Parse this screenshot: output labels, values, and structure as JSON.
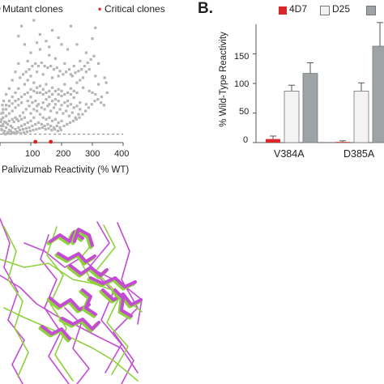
{
  "colors": {
    "mutant_points": "#b5b5b5",
    "critical_points": "#e02020",
    "series_4D7": "#d8262b",
    "series_D25": "#f3f3f3",
    "series_third": "#9ea3a6",
    "error_bar": "#555555",
    "axis": "#555555",
    "dashed_threshold": "#555555",
    "mol_green": "#8fd13d",
    "mol_magenta": "#c44bd4"
  },
  "panel_b_label": "B.",
  "chart_data": [
    {
      "type": "scatter",
      "legend_placement": "top",
      "legend": [
        {
          "label": "Mutant clones",
          "marker": "gray-square"
        },
        {
          "label": "Critical clones",
          "marker": "red-square"
        }
      ],
      "xlabel": "Palivizumab Reactivity (% WT)",
      "ylabel": "",
      "x_ticks": [
        "0",
        "100",
        "200",
        "300",
        "400"
      ],
      "xlim": [
        0,
        400
      ],
      "ylim": [
        0,
        150
      ],
      "grid": false,
      "threshold_line_y": 10,
      "series": [
        {
          "name": "Mutant clones",
          "points": [
            [
              70,
              140
            ],
            [
              110,
              147
            ],
            [
              60,
              128
            ],
            [
              80,
              118
            ],
            [
              100,
              108
            ],
            [
              130,
              112
            ],
            [
              90,
              98
            ],
            [
              150,
              122
            ],
            [
              200,
              118
            ],
            [
              160,
              105
            ],
            [
              180,
              101
            ],
            [
              220,
              112
            ],
            [
              250,
              118
            ],
            [
              280,
              108
            ],
            [
              300,
              125
            ],
            [
              210,
              95
            ],
            [
              240,
              92
            ],
            [
              260,
              98
            ],
            [
              290,
              88
            ],
            [
              320,
              95
            ],
            [
              340,
              78
            ],
            [
              230,
              82
            ],
            [
              190,
              80
            ],
            [
              170,
              78
            ],
            [
              140,
              82
            ],
            [
              120,
              85
            ],
            [
              100,
              80
            ],
            [
              90,
              75
            ],
            [
              80,
              70
            ],
            [
              60,
              65
            ],
            [
              50,
              60
            ],
            [
              40,
              55
            ],
            [
              30,
              50
            ],
            [
              20,
              45
            ],
            [
              10,
              40
            ],
            [
              5,
              35
            ],
            [
              110,
              72
            ],
            [
              130,
              68
            ],
            [
              150,
              70
            ],
            [
              170,
              66
            ],
            [
              190,
              64
            ],
            [
              210,
              70
            ],
            [
              230,
              65
            ],
            [
              250,
              72
            ],
            [
              270,
              66
            ],
            [
              290,
              62
            ],
            [
              310,
              58
            ],
            [
              330,
              55
            ],
            [
              120,
              60
            ],
            [
              140,
              58
            ],
            [
              160,
              55
            ],
            [
              180,
              52
            ],
            [
              200,
              56
            ],
            [
              220,
              50
            ],
            [
              240,
              54
            ],
            [
              260,
              48
            ],
            [
              280,
              46
            ],
            [
              100,
              55
            ],
            [
              90,
              50
            ],
            [
              70,
              48
            ],
            [
              60,
              45
            ],
            [
              50,
              42
            ],
            [
              40,
              38
            ],
            [
              30,
              35
            ],
            [
              20,
              32
            ],
            [
              10,
              30
            ],
            [
              5,
              28
            ],
            [
              15,
              25
            ],
            [
              25,
              22
            ],
            [
              35,
              20
            ],
            [
              45,
              25
            ],
            [
              55,
              28
            ],
            [
              65,
              32
            ],
            [
              75,
              36
            ],
            [
              85,
              40
            ],
            [
              95,
              44
            ],
            [
              105,
              48
            ],
            [
              115,
              50
            ],
            [
              125,
              46
            ],
            [
              135,
              42
            ],
            [
              145,
              40
            ],
            [
              155,
              44
            ],
            [
              165,
              38
            ],
            [
              175,
              42
            ],
            [
              185,
              36
            ],
            [
              195,
              40
            ],
            [
              205,
              35
            ],
            [
              215,
              38
            ],
            [
              225,
              32
            ],
            [
              235,
              36
            ],
            [
              245,
              30
            ],
            [
              255,
              34
            ],
            [
              120,
              38
            ],
            [
              130,
              34
            ],
            [
              140,
              30
            ],
            [
              150,
              28
            ],
            [
              160,
              30
            ],
            [
              170,
              26
            ],
            [
              180,
              28
            ],
            [
              190,
              24
            ],
            [
              200,
              26
            ],
            [
              110,
              30
            ],
            [
              100,
              26
            ],
            [
              90,
              24
            ],
            [
              80,
              22
            ],
            [
              70,
              20
            ],
            [
              60,
              18
            ],
            [
              50,
              16
            ],
            [
              40,
              18
            ],
            [
              30,
              15
            ],
            [
              20,
              18
            ],
            [
              10,
              20
            ],
            [
              5,
              16
            ],
            [
              15,
              14
            ],
            [
              25,
              12
            ],
            [
              35,
              14
            ],
            [
              45,
              12
            ],
            [
              55,
              13
            ],
            [
              65,
              15
            ],
            [
              75,
              16
            ],
            [
              85,
              17
            ],
            [
              95,
              18
            ],
            [
              105,
              20
            ],
            [
              115,
              22
            ],
            [
              125,
              24
            ],
            [
              135,
              22
            ],
            [
              145,
              20
            ],
            [
              155,
              22
            ],
            [
              165,
              20
            ],
            [
              175,
              18
            ],
            [
              185,
              20
            ],
            [
              195,
              18
            ],
            [
              100,
              35
            ],
            [
              110,
              40
            ],
            [
              120,
              44
            ],
            [
              80,
              30
            ],
            [
              70,
              28
            ],
            [
              60,
              26
            ],
            [
              50,
              30
            ],
            [
              40,
              28
            ],
            [
              30,
              26
            ],
            [
              20,
              24
            ],
            [
              10,
              22
            ],
            [
              140,
              48
            ],
            [
              150,
              52
            ],
            [
              160,
              46
            ],
            [
              170,
              50
            ],
            [
              180,
              46
            ],
            [
              190,
              50
            ],
            [
              200,
              45
            ],
            [
              210,
              48
            ],
            [
              220,
              44
            ],
            [
              230,
              46
            ],
            [
              240,
              42
            ],
            [
              250,
              44
            ],
            [
              260,
              40
            ],
            [
              300,
              60
            ],
            [
              320,
              70
            ],
            [
              310,
              80
            ],
            [
              280,
              85
            ],
            [
              270,
              78
            ],
            [
              260,
              75
            ],
            [
              250,
              60
            ],
            [
              240,
              62
            ],
            [
              230,
              58
            ],
            [
              220,
              60
            ],
            [
              210,
              58
            ],
            [
              200,
              62
            ],
            [
              190,
              58
            ],
            [
              180,
              62
            ],
            [
              170,
              58
            ],
            [
              160,
              62
            ],
            [
              150,
              60
            ],
            [
              140,
              64
            ],
            [
              130,
              60
            ],
            [
              120,
              66
            ],
            [
              110,
              62
            ],
            [
              100,
              64
            ],
            [
              90,
              60
            ],
            [
              80,
              58
            ],
            [
              70,
              55
            ],
            [
              60,
              52
            ],
            [
              50,
              50
            ],
            [
              40,
              47
            ],
            [
              30,
              44
            ],
            [
              20,
              40
            ],
            [
              10,
              36
            ],
            [
              95,
              88
            ],
            [
              85,
              85
            ],
            [
              75,
              82
            ],
            [
              65,
              78
            ],
            [
              105,
              92
            ],
            [
              115,
              95
            ],
            [
              125,
              92
            ],
            [
              135,
              96
            ],
            [
              145,
              92
            ],
            [
              155,
              90
            ],
            [
              165,
              92
            ],
            [
              175,
              88
            ],
            [
              185,
              90
            ],
            [
              195,
              86
            ],
            [
              205,
              82
            ],
            [
              215,
              85
            ],
            [
              225,
              88
            ],
            [
              235,
              80
            ],
            [
              245,
              84
            ],
            [
              255,
              86
            ],
            [
              265,
              88
            ],
            [
              275,
              92
            ],
            [
              285,
              96
            ],
            [
              295,
              100
            ],
            [
              305,
              104
            ],
            [
              130,
              130
            ],
            [
              170,
              135
            ],
            [
              230,
              140
            ],
            [
              310,
              138
            ],
            [
              190,
              126
            ],
            [
              160,
              115
            ],
            [
              120,
              120
            ],
            [
              60,
              95
            ],
            [
              50,
              85
            ],
            [
              40,
              75
            ],
            [
              30,
              65
            ],
            [
              20,
              58
            ],
            [
              12,
              50
            ],
            [
              8,
              45
            ],
            [
              3,
              25
            ],
            [
              2,
              20
            ],
            [
              6,
              15
            ],
            [
              12,
              11
            ],
            [
              18,
              10
            ],
            [
              28,
              11
            ],
            [
              38,
              12
            ],
            [
              48,
              11
            ],
            [
              58,
              12
            ],
            [
              68,
              11
            ],
            [
              78,
              12
            ],
            [
              88,
              13
            ],
            [
              98,
              14
            ],
            [
              108,
              15
            ],
            [
              118,
              16
            ],
            [
              128,
              17
            ],
            [
              138,
              18
            ],
            [
              148,
              16
            ],
            [
              158,
              17
            ],
            [
              168,
              15
            ],
            [
              178,
              16
            ],
            [
              188,
              14
            ],
            [
              198,
              15
            ],
            [
              208,
              20
            ],
            [
              218,
              22
            ],
            [
              228,
              24
            ],
            [
              238,
              26
            ],
            [
              248,
              28
            ],
            [
              258,
              30
            ],
            [
              268,
              34
            ],
            [
              278,
              38
            ],
            [
              288,
              42
            ],
            [
              298,
              46
            ],
            [
              308,
              50
            ],
            [
              318,
              52
            ],
            [
              328,
              48
            ],
            [
              338,
              45
            ],
            [
              348,
              60
            ],
            [
              345,
              72
            ]
          ]
        },
        {
          "name": "Critical clones",
          "points": [
            [
              115,
              0
            ],
            [
              165,
              0
            ]
          ]
        }
      ]
    },
    {
      "type": "bar",
      "legend_placement": "top",
      "ylabel": "% Wild-Type Reactivity",
      "xlabel": "",
      "ylim": [
        0,
        200
      ],
      "y_ticks": [
        "0",
        "50",
        "100",
        "150"
      ],
      "grid": false,
      "categories": [
        "V384A",
        "D385A"
      ],
      "series": [
        {
          "name": "4D7",
          "values": [
            6,
            1
          ],
          "errors": [
            5,
            2
          ]
        },
        {
          "name": "D25",
          "values": [
            87,
            87
          ],
          "errors": [
            10,
            14
          ]
        },
        {
          "name": "",
          "values": [
            117,
            163
          ],
          "errors": [
            18,
            40
          ]
        }
      ]
    }
  ]
}
